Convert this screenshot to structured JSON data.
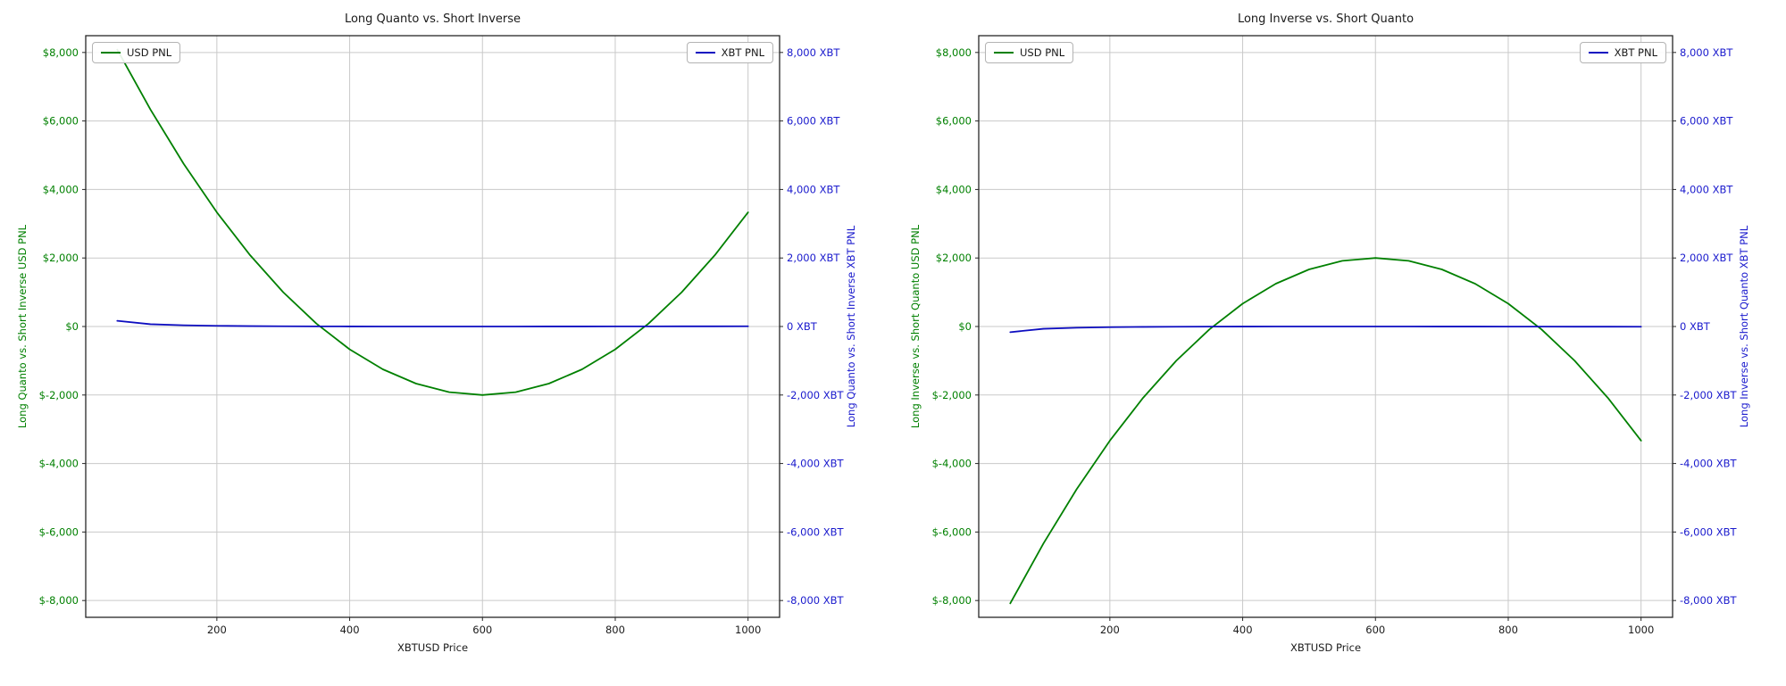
{
  "figure": {
    "background": "#ffffff"
  },
  "colors": {
    "usd_line": "#008000",
    "xbt_line": "#0d0dc0",
    "left_tick_text": "#008000",
    "right_tick_text": "#1a1acd",
    "grid": "#c9c9c9",
    "spine": "#262626",
    "black_text": "#1a1a1a"
  },
  "chart_data": [
    {
      "type": "line",
      "title": "Long Quanto vs. Short Inverse",
      "xlabel": "XBTUSD Price",
      "ylabel_left": "Long Quanto vs. Short Inverse USD PNL",
      "ylabel_right": "Long Quanto vs. Short Inverse XBT PNL",
      "grid": true,
      "legend_position": "top-left-and-top-right",
      "xlim": [
        2.5,
        1047.5
      ],
      "ylim": [
        -8490,
        8490
      ],
      "xticks": [
        {
          "value": 200,
          "label": "200"
        },
        {
          "value": 400,
          "label": "400"
        },
        {
          "value": 600,
          "label": "600"
        },
        {
          "value": 800,
          "label": "800"
        },
        {
          "value": 1000,
          "label": "1000"
        }
      ],
      "yticks_left": [
        {
          "value": 8000,
          "label": "$8,000"
        },
        {
          "value": 6000,
          "label": "$6,000"
        },
        {
          "value": 4000,
          "label": "$4,000"
        },
        {
          "value": 2000,
          "label": "$2,000"
        },
        {
          "value": 0,
          "label": "$0"
        },
        {
          "value": -2000,
          "label": "$-2,000"
        },
        {
          "value": -4000,
          "label": "$-4,000"
        },
        {
          "value": -6000,
          "label": "$-6,000"
        },
        {
          "value": -8000,
          "label": "$-8,000"
        }
      ],
      "yticks_right": [
        {
          "value": 8000,
          "label": "8,000 XBT"
        },
        {
          "value": 6000,
          "label": "6,000 XBT"
        },
        {
          "value": 4000,
          "label": "4,000 XBT"
        },
        {
          "value": 2000,
          "label": "2,000 XBT"
        },
        {
          "value": 0,
          "label": "0 XBT"
        },
        {
          "value": -2000,
          "label": "-2,000 XBT"
        },
        {
          "value": -4000,
          "label": "-4,000 XBT"
        },
        {
          "value": -6000,
          "label": "-6,000 XBT"
        },
        {
          "value": -8000,
          "label": "-8,000 XBT"
        }
      ],
      "x": [
        50,
        100,
        150,
        200,
        250,
        300,
        350,
        400,
        450,
        500,
        550,
        600,
        650,
        700,
        750,
        800,
        850,
        900,
        950,
        1000
      ],
      "series": [
        {
          "name": "USD PNL",
          "axis": "left",
          "color": "#008000",
          "values": [
            8083,
            6333,
            4750,
            3333,
            2083,
            1000,
            83,
            -667,
            -1250,
            -1667,
            -1917,
            -2000,
            -1917,
            -1667,
            -1250,
            -667,
            83,
            1000,
            2083,
            3333
          ]
        },
        {
          "name": "XBT PNL",
          "axis": "right",
          "color": "#0d0dc0",
          "values": [
            165,
            66.7,
            35,
            20,
            11.7,
            6.7,
            3.6,
            1.7,
            0.6,
            0,
            -0.2,
            0,
            0.4,
            1,
            1.7,
            2.5,
            3.4,
            4.4,
            5.5,
            6.7
          ]
        }
      ]
    },
    {
      "type": "line",
      "title": "Long Inverse vs. Short Quanto",
      "xlabel": "XBTUSD Price",
      "ylabel_left": "Long Inverse vs. Short Quanto USD PNL",
      "ylabel_right": "Long Inverse vs. Short Quanto XBT PNL",
      "grid": true,
      "legend_position": "top-left-and-top-right",
      "xlim": [
        2.5,
        1047.5
      ],
      "ylim": [
        -8490,
        8490
      ],
      "xticks": [
        {
          "value": 200,
          "label": "200"
        },
        {
          "value": 400,
          "label": "400"
        },
        {
          "value": 600,
          "label": "600"
        },
        {
          "value": 800,
          "label": "800"
        },
        {
          "value": 1000,
          "label": "1000"
        }
      ],
      "yticks_left": [
        {
          "value": 8000,
          "label": "$8,000"
        },
        {
          "value": 6000,
          "label": "$6,000"
        },
        {
          "value": 4000,
          "label": "$4,000"
        },
        {
          "value": 2000,
          "label": "$2,000"
        },
        {
          "value": 0,
          "label": "$0"
        },
        {
          "value": -2000,
          "label": "$-2,000"
        },
        {
          "value": -4000,
          "label": "$-4,000"
        },
        {
          "value": -6000,
          "label": "$-6,000"
        },
        {
          "value": -8000,
          "label": "$-8,000"
        }
      ],
      "yticks_right": [
        {
          "value": 8000,
          "label": "8,000 XBT"
        },
        {
          "value": 6000,
          "label": "6,000 XBT"
        },
        {
          "value": 4000,
          "label": "4,000 XBT"
        },
        {
          "value": 2000,
          "label": "2,000 XBT"
        },
        {
          "value": 0,
          "label": "0 XBT"
        },
        {
          "value": -2000,
          "label": "-2,000 XBT"
        },
        {
          "value": -4000,
          "label": "-4,000 XBT"
        },
        {
          "value": -6000,
          "label": "-6,000 XBT"
        },
        {
          "value": -8000,
          "label": "-8,000 XBT"
        }
      ],
      "x": [
        50,
        100,
        150,
        200,
        250,
        300,
        350,
        400,
        450,
        500,
        550,
        600,
        650,
        700,
        750,
        800,
        850,
        900,
        950,
        1000
      ],
      "series": [
        {
          "name": "USD PNL",
          "axis": "left",
          "color": "#008000",
          "values": [
            -8083,
            -6333,
            -4750,
            -3333,
            -2083,
            -1000,
            -83,
            667,
            1250,
            1667,
            1917,
            2000,
            1917,
            1667,
            1250,
            667,
            -83,
            -1000,
            -2083,
            -3333
          ]
        },
        {
          "name": "XBT PNL",
          "axis": "right",
          "color": "#0d0dc0",
          "values": [
            -165,
            -66.7,
            -35,
            -20,
            -11.7,
            -6.7,
            -3.6,
            -1.7,
            -0.6,
            0,
            0.2,
            0,
            -0.4,
            -1,
            -1.7,
            -2.5,
            -3.4,
            -4.4,
            -5.5,
            -6.7
          ]
        }
      ]
    }
  ]
}
